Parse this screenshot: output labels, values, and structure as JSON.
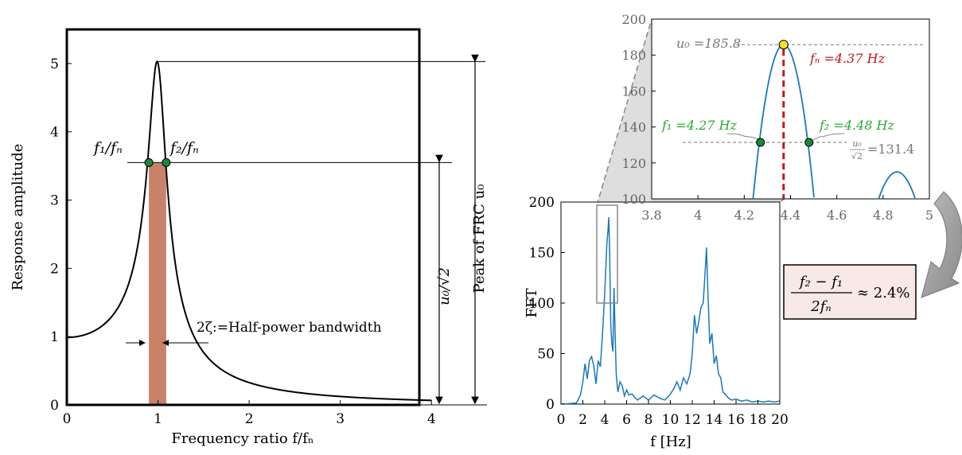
{
  "chart_data": [
    {
      "id": "frc",
      "type": "line",
      "xlabel": "Frequency ratio f/fₙ",
      "ylabel": "Response amplitude",
      "xlim": [
        0,
        4.6
      ],
      "ylim": [
        0,
        5.5
      ],
      "xticks": [
        "0",
        "1",
        "2",
        "3",
        "4"
      ],
      "yticks": [
        "0",
        "1",
        "2",
        "3",
        "4",
        "5"
      ],
      "series": [
        {
          "zeta": 0.0987,
          "peak": 5.03,
          "color": "#000000"
        }
      ],
      "annotations": {
        "f1_label": "f₁/fₙ",
        "f2_label": "f₂/fₙ",
        "f1_ratio": 0.9,
        "f2_ratio": 1.09,
        "half_power_level": 3.55,
        "bandwidth_label": "2ζ:=Half-power bandwidth",
        "peak_label": "Peak of FRC u₀",
        "half_power_label": "u₀/√2",
        "band_color": "#c8826a"
      }
    },
    {
      "id": "fft",
      "type": "line",
      "xlabel": "f [Hz]",
      "ylabel": "FFT",
      "xlim": [
        0,
        20
      ],
      "ylim": [
        0,
        200
      ],
      "xticks": [
        "0",
        "2",
        "4",
        "6",
        "8",
        "10",
        "12",
        "14",
        "16",
        "18",
        "20"
      ],
      "yticks": [
        "0",
        "50",
        "100",
        "150",
        "200"
      ],
      "series": [
        {
          "color": "#1f77b4",
          "x": [
            0,
            1.4,
            1.6,
            1.8,
            2.0,
            2.2,
            2.4,
            2.6,
            2.8,
            3.0,
            3.2,
            3.4,
            3.6,
            3.8,
            4.0,
            4.2,
            4.3,
            4.37,
            4.45,
            4.55,
            4.65,
            4.75,
            4.85,
            4.95,
            5.05,
            5.2,
            5.4,
            5.6,
            5.8,
            6.0,
            6.2,
            6.5,
            6.8,
            7.0,
            7.5,
            8.0,
            8.5,
            9.0,
            9.5,
            10.0,
            10.3,
            10.6,
            10.9,
            11.2,
            11.5,
            11.8,
            12.0,
            12.2,
            12.4,
            12.6,
            12.8,
            13.0,
            13.2,
            13.3,
            13.4,
            13.5,
            13.6,
            13.8,
            14.0,
            14.2,
            14.4,
            14.6,
            14.8,
            15.0,
            15.3,
            15.6,
            16.0,
            16.5,
            17.0,
            17.5,
            18.0,
            18.5,
            19.0,
            19.5,
            20.0
          ],
          "y": [
            0,
            1,
            5,
            10,
            22,
            40,
            25,
            43,
            47,
            38,
            20,
            43,
            37,
            70,
            110,
            160,
            172,
            185,
            150,
            80,
            60,
            52,
            115,
            70,
            30,
            12,
            22,
            18,
            8,
            14,
            9,
            10,
            6,
            4,
            8,
            4,
            9,
            6,
            4,
            10,
            15,
            22,
            14,
            26,
            20,
            30,
            50,
            88,
            70,
            82,
            96,
            100,
            135,
            155,
            120,
            90,
            60,
            70,
            40,
            48,
            30,
            26,
            12,
            10,
            6,
            4,
            5,
            3,
            4,
            2,
            3,
            2,
            3,
            2,
            3
          ]
        }
      ]
    },
    {
      "id": "zoom",
      "type": "line",
      "xlim": [
        3.8,
        5.0
      ],
      "ylim": [
        100,
        200
      ],
      "xticks": [
        "3.8",
        "4",
        "4.2",
        "4.4",
        "4.6",
        "4.8",
        "5"
      ],
      "yticks": [
        "100",
        "120",
        "140",
        "160",
        "180",
        "200"
      ],
      "series": [
        {
          "color": "#1f77b4",
          "peak_f": 4.37,
          "peak_u": 185.8,
          "second_peak_f": 4.86,
          "second_peak_u": 115
        }
      ],
      "annotations": {
        "u0_label": "u₀ =185.8",
        "fn_label": "fₙ =4.37 Hz",
        "f1_label": "f₁ =4.27 Hz",
        "f2_label": "f₂ =4.48 Hz",
        "half_label_num": "u₀",
        "half_label_den": "√2",
        "half_label_value": "=131.4",
        "f1": 4.27,
        "f2": 4.48,
        "half_u": 131.4,
        "fn_color": "#c0191b",
        "f_color": "#2aa834",
        "marker_color": "#1a8a3a",
        "peak_marker_color": "#f3e22a"
      }
    }
  ],
  "formula": {
    "numerator": "f₂ − f₁",
    "denominator": "2fₙ",
    "result": "≈ 2.4%",
    "background": "#f8e9e6"
  }
}
